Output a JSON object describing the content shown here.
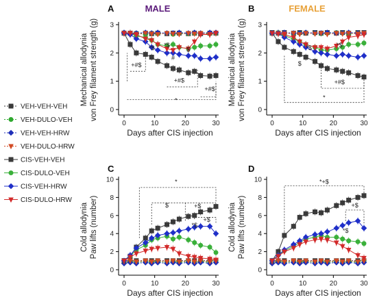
{
  "colors": {
    "VEH-VEH-VEH": "#3a3a3a",
    "VEH-DULO-VEH": "#2fa82f",
    "VEH-VEH-HRW": "#1f2fb8",
    "VEH-DULO-HRW": "#d24a24",
    "CIS-VEH-VEH": "#3a3a3a",
    "CIS-DULO-VEH": "#3ab03a",
    "CIS-VEH-HRW": "#1f2fc8",
    "CIS-DULO-HRW": "#d22a2a",
    "male_title": "#5b1a7a",
    "female_title": "#e8a23a"
  },
  "legend": [
    {
      "label": "VEH-VEH-VEH",
      "marker": "square",
      "dashed": true
    },
    {
      "label": "VEH-DULO-VEH",
      "marker": "circle",
      "dashed": true
    },
    {
      "label": "VEH-VEH-HRW",
      "marker": "diamond",
      "dashed": true
    },
    {
      "label": "VEH-DULO-HRW",
      "marker": "triangle-down",
      "dashed": true
    },
    {
      "label": "CIS-VEH-VEH",
      "marker": "square",
      "dashed": false
    },
    {
      "label": "CIS-DULO-VEH",
      "marker": "circle",
      "dashed": false
    },
    {
      "label": "CIS-VEH-HRW",
      "marker": "diamond",
      "dashed": false
    },
    {
      "label": "CIS-DULO-HRW",
      "marker": "triangle-down",
      "dashed": false
    }
  ],
  "chart_data": [
    {
      "panel": "A",
      "type": "line",
      "title": "MALE",
      "xlabel": "Days after CIS injection",
      "ylabel": "Mechanical allodynia\nvon Frey filament strength (g)",
      "xlim": [
        0,
        30
      ],
      "ylim": [
        0,
        3
      ],
      "xticks": [
        0,
        10,
        20,
        30
      ],
      "yticks": [
        0,
        1,
        2,
        3
      ],
      "x": [
        0,
        2,
        4,
        7,
        9,
        11,
        14,
        16,
        18,
        21,
        23,
        25,
        28,
        30
      ],
      "series": [
        {
          "name": "VEH-VEH-VEH",
          "values": [
            2.7,
            2.7,
            2.68,
            2.7,
            2.68,
            2.7,
            2.68,
            2.7,
            2.7,
            2.68,
            2.7,
            2.68,
            2.7,
            2.7
          ]
        },
        {
          "name": "VEH-DULO-VEH",
          "values": [
            2.7,
            2.68,
            2.7,
            2.66,
            2.7,
            2.68,
            2.7,
            2.66,
            2.7,
            2.68,
            2.7,
            2.7,
            2.68,
            2.7
          ]
        },
        {
          "name": "VEH-VEH-HRW",
          "values": [
            2.72,
            2.7,
            2.7,
            2.72,
            2.7,
            2.72,
            2.7,
            2.7,
            2.72,
            2.7,
            2.72,
            2.7,
            2.72,
            2.72
          ]
        },
        {
          "name": "VEH-DULO-HRW",
          "values": [
            2.68,
            2.7,
            2.66,
            2.7,
            2.68,
            2.66,
            2.7,
            2.68,
            2.66,
            2.7,
            2.68,
            2.7,
            2.66,
            2.7
          ]
        },
        {
          "name": "CIS-VEH-VEH",
          "values": [
            2.7,
            2.3,
            2.0,
            1.95,
            1.85,
            1.7,
            1.55,
            1.45,
            1.4,
            1.3,
            1.35,
            1.2,
            1.18,
            1.2
          ]
        },
        {
          "name": "CIS-DULO-VEH",
          "values": [
            2.7,
            2.7,
            2.6,
            2.55,
            2.45,
            2.3,
            2.25,
            2.3,
            2.2,
            2.15,
            2.2,
            2.25,
            2.25,
            2.3
          ]
        },
        {
          "name": "CIS-VEH-HRW",
          "values": [
            2.7,
            2.65,
            2.5,
            2.4,
            2.2,
            2.1,
            2.0,
            2.0,
            1.95,
            1.9,
            1.9,
            1.8,
            1.8,
            1.85
          ]
        },
        {
          "name": "CIS-DULO-HRW",
          "values": [
            2.7,
            2.7,
            2.65,
            2.5,
            2.45,
            2.3,
            2.15,
            2.1,
            2.2,
            2.15,
            2.4,
            2.65,
            2.65,
            2.7
          ]
        }
      ],
      "annotations": [
        "+#$",
        "+#$",
        "+#$",
        "*",
        "*$",
        "$",
        "#",
        "+"
      ]
    },
    {
      "panel": "B",
      "type": "line",
      "title": "FEMALE",
      "xlabel": "Days after CIS injection",
      "ylabel": "Mechanical allodynia\nvon Frey filament strength (g)",
      "xlim": [
        0,
        30
      ],
      "ylim": [
        0,
        3
      ],
      "xticks": [
        0,
        10,
        20,
        30
      ],
      "yticks": [
        0,
        1,
        2,
        3
      ],
      "x": [
        0,
        2,
        4,
        7,
        9,
        11,
        14,
        16,
        18,
        21,
        23,
        25,
        28,
        30
      ],
      "series": [
        {
          "name": "VEH-VEH-VEH",
          "values": [
            2.72,
            2.7,
            2.72,
            2.7,
            2.72,
            2.7,
            2.72,
            2.7,
            2.72,
            2.7,
            2.72,
            2.7,
            2.72,
            2.72
          ]
        },
        {
          "name": "VEH-DULO-VEH",
          "values": [
            2.7,
            2.72,
            2.7,
            2.68,
            2.7,
            2.72,
            2.7,
            2.68,
            2.7,
            2.72,
            2.7,
            2.68,
            2.7,
            2.7
          ]
        },
        {
          "name": "VEH-VEH-HRW",
          "values": [
            2.7,
            2.7,
            2.72,
            2.7,
            2.7,
            2.72,
            2.7,
            2.7,
            2.72,
            2.7,
            2.7,
            2.72,
            2.7,
            2.7
          ]
        },
        {
          "name": "VEH-DULO-HRW",
          "values": [
            2.68,
            2.7,
            2.68,
            2.7,
            2.66,
            2.7,
            2.68,
            2.7,
            2.66,
            2.7,
            2.68,
            2.7,
            2.68,
            2.7
          ]
        },
        {
          "name": "CIS-VEH-VEH",
          "values": [
            2.7,
            2.4,
            2.2,
            2.05,
            1.95,
            1.85,
            1.7,
            1.55,
            1.45,
            1.4,
            1.35,
            1.3,
            1.2,
            1.15
          ]
        },
        {
          "name": "CIS-DULO-VEH",
          "values": [
            2.7,
            2.7,
            2.6,
            2.5,
            2.4,
            2.3,
            2.2,
            2.1,
            2.1,
            2.15,
            2.2,
            2.3,
            2.3,
            2.35
          ]
        },
        {
          "name": "CIS-VEH-HRW",
          "values": [
            2.7,
            2.7,
            2.55,
            2.4,
            2.3,
            2.2,
            2.05,
            2.0,
            1.95,
            1.9,
            1.95,
            1.9,
            1.85,
            1.9
          ]
        },
        {
          "name": "CIS-DULO-HRW",
          "values": [
            2.7,
            2.68,
            2.65,
            2.55,
            2.4,
            2.3,
            2.2,
            2.2,
            2.15,
            2.25,
            2.4,
            2.55,
            2.6,
            2.65
          ]
        }
      ],
      "annotations": [
        "+#$",
        "*",
        "$",
        "+",
        "$"
      ]
    },
    {
      "panel": "C",
      "type": "line",
      "xlabel": "Days after CIS injection",
      "ylabel": "Cold allodynia\nPaw lifts (number)",
      "xlim": [
        0,
        30
      ],
      "ylim": [
        0,
        10
      ],
      "xticks": [
        0,
        10,
        20,
        30
      ],
      "yticks": [
        0,
        2,
        4,
        6,
        8,
        10
      ],
      "x": [
        0,
        2,
        4,
        7,
        9,
        11,
        14,
        16,
        18,
        21,
        23,
        25,
        28,
        30
      ],
      "series": [
        {
          "name": "VEH-VEH-VEH",
          "values": [
            1.0,
            1.0,
            1.0,
            1.0,
            1.0,
            1.0,
            1.0,
            1.0,
            1.0,
            1.0,
            1.0,
            1.0,
            1.0,
            1.0
          ]
        },
        {
          "name": "VEH-DULO-VEH",
          "values": [
            0.8,
            0.9,
            0.8,
            0.9,
            0.8,
            0.9,
            0.8,
            0.9,
            0.8,
            0.9,
            0.8,
            0.9,
            0.8,
            0.9
          ]
        },
        {
          "name": "VEH-VEH-HRW",
          "values": [
            0.7,
            0.8,
            0.7,
            0.8,
            0.7,
            0.8,
            0.7,
            0.8,
            0.7,
            0.8,
            0.7,
            0.8,
            0.7,
            0.8
          ]
        },
        {
          "name": "VEH-DULO-HRW",
          "values": [
            0.9,
            1.0,
            0.9,
            1.0,
            0.9,
            1.0,
            0.9,
            1.0,
            0.9,
            1.0,
            0.9,
            1.0,
            0.9,
            1.0
          ]
        },
        {
          "name": "CIS-VEH-VEH",
          "values": [
            1.0,
            1.5,
            2.5,
            3.5,
            4.3,
            4.6,
            5.0,
            5.3,
            5.6,
            5.9,
            6.0,
            6.4,
            6.6,
            7.0
          ]
        },
        {
          "name": "CIS-DULO-VEH",
          "values": [
            1.0,
            1.5,
            2.2,
            2.7,
            3.3,
            3.5,
            3.7,
            3.4,
            3.6,
            3.3,
            3.0,
            2.7,
            2.5,
            1.9
          ]
        },
        {
          "name": "CIS-VEH-HRW",
          "values": [
            1.0,
            1.6,
            2.4,
            3.0,
            3.5,
            3.8,
            4.0,
            4.1,
            4.3,
            4.5,
            4.7,
            4.8,
            4.8,
            4.0
          ]
        },
        {
          "name": "CIS-DULO-HRW",
          "values": [
            1.0,
            1.4,
            1.8,
            2.1,
            2.3,
            2.4,
            2.5,
            2.3,
            1.8,
            1.5,
            1.4,
            1.3,
            1.2,
            1.1
          ]
        }
      ],
      "annotations": [
        "*",
        "$",
        "+$",
        "*$",
        "+$"
      ]
    },
    {
      "panel": "D",
      "type": "line",
      "xlabel": "Days after CIS injection",
      "ylabel": "Cold allodynia\nPaw lifts (number)",
      "xlim": [
        0,
        30
      ],
      "ylim": [
        0,
        10
      ],
      "xticks": [
        0,
        10,
        20,
        30
      ],
      "yticks": [
        0,
        2,
        4,
        6,
        8,
        10
      ],
      "x": [
        0,
        2,
        4,
        7,
        9,
        11,
        14,
        16,
        18,
        21,
        23,
        25,
        28,
        30
      ],
      "series": [
        {
          "name": "VEH-VEH-VEH",
          "values": [
            1.0,
            1.0,
            1.0,
            1.0,
            1.0,
            1.0,
            1.0,
            1.0,
            1.0,
            1.0,
            1.0,
            1.0,
            1.0,
            1.0
          ]
        },
        {
          "name": "VEH-DULO-VEH",
          "values": [
            0.8,
            0.9,
            0.8,
            0.9,
            0.8,
            0.9,
            0.8,
            0.9,
            0.8,
            0.9,
            0.8,
            0.9,
            0.8,
            0.9
          ]
        },
        {
          "name": "VEH-VEH-HRW",
          "values": [
            0.7,
            0.8,
            0.7,
            0.8,
            0.7,
            0.8,
            0.7,
            0.8,
            0.7,
            0.8,
            0.7,
            0.8,
            0.7,
            0.8
          ]
        },
        {
          "name": "VEH-DULO-HRW",
          "values": [
            0.9,
            1.0,
            0.9,
            1.0,
            0.9,
            1.0,
            0.9,
            1.0,
            0.9,
            1.0,
            0.9,
            1.0,
            0.9,
            1.0
          ]
        },
        {
          "name": "CIS-VEH-VEH",
          "values": [
            1.0,
            2.0,
            3.8,
            4.8,
            5.8,
            6.2,
            6.4,
            6.3,
            6.6,
            7.1,
            7.4,
            7.7,
            8.0,
            8.2
          ]
        },
        {
          "name": "CIS-DULO-VEH",
          "values": [
            1.0,
            1.6,
            2.1,
            2.6,
            3.0,
            3.4,
            3.6,
            3.8,
            3.6,
            3.6,
            3.4,
            3.2,
            3.1,
            2.9
          ]
        },
        {
          "name": "CIS-VEH-HRW",
          "values": [
            1.0,
            1.6,
            2.2,
            2.8,
            3.2,
            3.6,
            3.9,
            4.0,
            4.2,
            4.6,
            4.9,
            5.2,
            5.4,
            4.6
          ]
        },
        {
          "name": "CIS-DULO-HRW",
          "values": [
            1.0,
            1.5,
            2.0,
            2.4,
            2.8,
            3.1,
            3.3,
            3.4,
            3.3,
            3.0,
            2.6,
            2.2,
            1.6,
            1.3
          ]
        }
      ],
      "annotations": [
        "*+$",
        "+$",
        "*$"
      ]
    }
  ]
}
